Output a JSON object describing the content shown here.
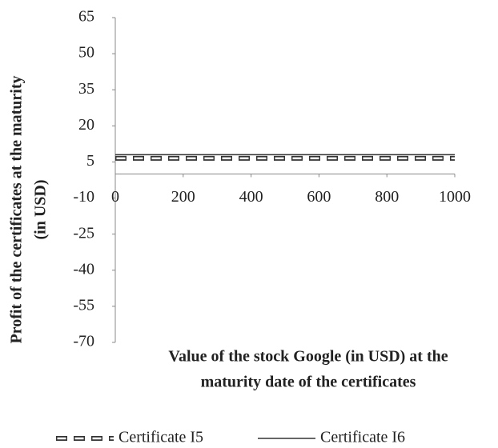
{
  "chart_data": {
    "type": "line",
    "x_label": [
      "Value of the stock Google (in USD) at the",
      "maturity   date of the certificates"
    ],
    "y_label": [
      "Profit of the certificates at the maturity",
      "(in USD)"
    ],
    "x": [
      0,
      1000
    ],
    "series": [
      {
        "name": "Certificate I5",
        "color": "#333333",
        "style": "dashed",
        "values": [
          6.5,
          6.5
        ]
      },
      {
        "name": "Certificate I6",
        "color": "#333333",
        "style": "solid",
        "values": [
          8,
          8
        ]
      }
    ],
    "xlim": [
      0,
      1000
    ],
    "xticks": [
      0,
      200,
      400,
      600,
      800,
      1000
    ],
    "ylim": [
      -70,
      65
    ],
    "yticks": [
      65,
      50,
      35,
      20,
      5,
      -10,
      -25,
      -40,
      -55,
      -70
    ],
    "grid": false,
    "legend": "bottom"
  }
}
